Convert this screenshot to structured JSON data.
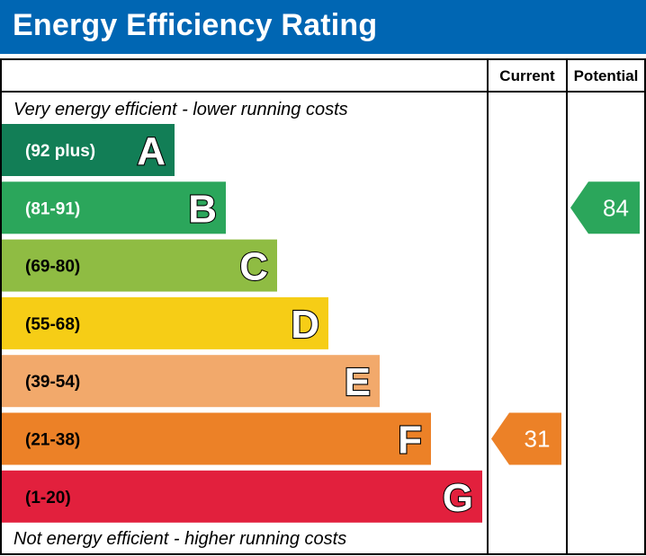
{
  "header": {
    "title": "Energy Efficiency Rating",
    "color": "#0066b3"
  },
  "chart_data": {
    "type": "bar",
    "title": "Energy Efficiency Rating",
    "columns": [
      "Current",
      "Potential"
    ],
    "top_note": "Very energy efficient - lower running costs",
    "bottom_note": "Not energy efficient - higher running costs",
    "bands": [
      {
        "letter": "A",
        "range": "(92 plus)",
        "min": 92,
        "max": 100,
        "color": "#127e56",
        "label_dark": false
      },
      {
        "letter": "B",
        "range": "(81-91)",
        "min": 81,
        "max": 91,
        "color": "#2ba65b",
        "label_dark": false
      },
      {
        "letter": "C",
        "range": "(69-80)",
        "min": 69,
        "max": 80,
        "color": "#8fbc43",
        "label_dark": true
      },
      {
        "letter": "D",
        "range": "(55-68)",
        "min": 55,
        "max": 68,
        "color": "#f6cd16",
        "label_dark": true
      },
      {
        "letter": "E",
        "range": "(39-54)",
        "min": 39,
        "max": 54,
        "color": "#f2a96b",
        "label_dark": true
      },
      {
        "letter": "F",
        "range": "(21-38)",
        "min": 21,
        "max": 38,
        "color": "#ec8127",
        "label_dark": true
      },
      {
        "letter": "G",
        "range": "(1-20)",
        "min": 1,
        "max": 20,
        "color": "#e2203d",
        "label_dark": true
      }
    ],
    "ratings": {
      "current": {
        "value": 31,
        "band": "F",
        "color": "#ec8127"
      },
      "potential": {
        "value": 84,
        "band": "B",
        "color": "#2ba65b"
      }
    }
  }
}
